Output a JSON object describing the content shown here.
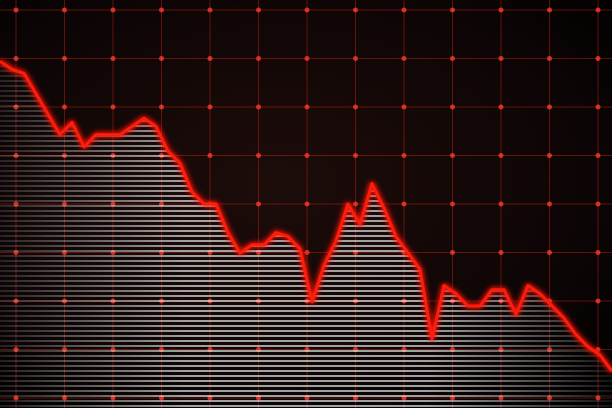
{
  "chart_data": {
    "type": "line",
    "color": "#ff1a10",
    "grid": true,
    "ylim": [
      0,
      100
    ],
    "values": [
      85,
      83,
      82,
      77,
      72,
      67,
      70,
      64,
      67,
      67,
      67,
      69,
      71,
      69,
      63,
      60,
      53,
      50,
      50,
      43,
      38,
      40,
      40,
      43,
      42,
      39,
      26,
      35,
      41,
      50,
      45,
      55,
      49,
      42,
      38,
      34,
      17,
      30,
      28,
      25,
      25,
      29,
      29,
      23,
      30,
      28,
      25,
      22,
      18,
      15,
      13,
      9
    ]
  }
}
